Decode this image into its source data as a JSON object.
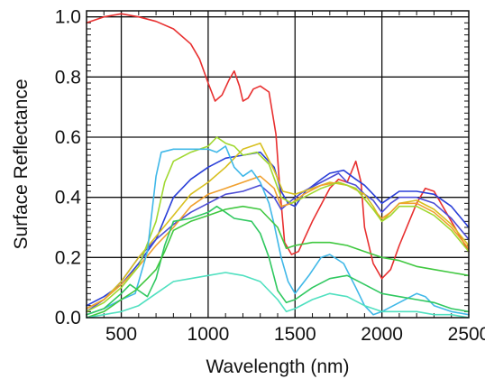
{
  "chart_data": {
    "type": "line",
    "title": "",
    "xlabel": "Wavelength (nm)",
    "ylabel": "Surface Reflectance",
    "xlim": [
      300,
      2500
    ],
    "ylim": [
      0,
      1.02
    ],
    "x_ticks": [
      500,
      1000,
      1500,
      2000,
      2500
    ],
    "y_ticks": [
      0.0,
      0.2,
      0.4,
      0.6,
      0.8,
      1.0
    ],
    "x_tick_labels": [
      "500",
      "1000",
      "1500",
      "2000",
      "2500"
    ],
    "y_tick_labels": [
      "0.0",
      "0.2",
      "0.4",
      "0.6",
      "0.8",
      "1.0"
    ],
    "grid": true,
    "legend": false,
    "series": [
      {
        "color": "#e83030",
        "points": [
          [
            300,
            0.98
          ],
          [
            400,
            1.0
          ],
          [
            500,
            1.01
          ],
          [
            600,
            1.0
          ],
          [
            700,
            0.985
          ],
          [
            800,
            0.96
          ],
          [
            900,
            0.91
          ],
          [
            950,
            0.86
          ],
          [
            1000,
            0.78
          ],
          [
            1040,
            0.72
          ],
          [
            1080,
            0.74
          ],
          [
            1120,
            0.79
          ],
          [
            1150,
            0.82
          ],
          [
            1180,
            0.77
          ],
          [
            1200,
            0.72
          ],
          [
            1230,
            0.73
          ],
          [
            1260,
            0.76
          ],
          [
            1300,
            0.77
          ],
          [
            1350,
            0.75
          ],
          [
            1390,
            0.61
          ],
          [
            1410,
            0.45
          ],
          [
            1440,
            0.25
          ],
          [
            1480,
            0.21
          ],
          [
            1520,
            0.22
          ],
          [
            1600,
            0.32
          ],
          [
            1700,
            0.43
          ],
          [
            1750,
            0.46
          ],
          [
            1800,
            0.45
          ],
          [
            1850,
            0.52
          ],
          [
            1880,
            0.45
          ],
          [
            1900,
            0.3
          ],
          [
            1950,
            0.18
          ],
          [
            2000,
            0.13
          ],
          [
            2050,
            0.16
          ],
          [
            2100,
            0.24
          ],
          [
            2150,
            0.31
          ],
          [
            2200,
            0.38
          ],
          [
            2250,
            0.43
          ],
          [
            2300,
            0.42
          ],
          [
            2400,
            0.32
          ],
          [
            2500,
            0.22
          ]
        ]
      },
      {
        "color": "#2a3fd8",
        "points": [
          [
            300,
            0.04
          ],
          [
            400,
            0.07
          ],
          [
            500,
            0.11
          ],
          [
            600,
            0.18
          ],
          [
            700,
            0.26
          ],
          [
            800,
            0.4
          ],
          [
            900,
            0.46
          ],
          [
            1000,
            0.5
          ],
          [
            1100,
            0.53
          ],
          [
            1200,
            0.54
          ],
          [
            1300,
            0.55
          ],
          [
            1380,
            0.5
          ],
          [
            1420,
            0.42
          ],
          [
            1460,
            0.38
          ],
          [
            1500,
            0.37
          ],
          [
            1560,
            0.42
          ],
          [
            1650,
            0.46
          ],
          [
            1700,
            0.48
          ],
          [
            1780,
            0.49
          ],
          [
            1850,
            0.46
          ],
          [
            1900,
            0.44
          ],
          [
            1950,
            0.41
          ],
          [
            2000,
            0.38
          ],
          [
            2050,
            0.4
          ],
          [
            2100,
            0.42
          ],
          [
            2200,
            0.42
          ],
          [
            2300,
            0.41
          ],
          [
            2400,
            0.37
          ],
          [
            2500,
            0.3
          ]
        ]
      },
      {
        "color": "#4d4dd6",
        "points": [
          [
            300,
            0.02
          ],
          [
            400,
            0.06
          ],
          [
            500,
            0.12
          ],
          [
            600,
            0.2
          ],
          [
            700,
            0.26
          ],
          [
            800,
            0.31
          ],
          [
            900,
            0.35
          ],
          [
            1000,
            0.38
          ],
          [
            1100,
            0.41
          ],
          [
            1200,
            0.42
          ],
          [
            1300,
            0.44
          ],
          [
            1380,
            0.4
          ],
          [
            1420,
            0.36
          ],
          [
            1480,
            0.39
          ],
          [
            1550,
            0.42
          ],
          [
            1650,
            0.45
          ],
          [
            1750,
            0.48
          ],
          [
            1800,
            0.45
          ],
          [
            1850,
            0.44
          ],
          [
            1900,
            0.41
          ],
          [
            1950,
            0.39
          ],
          [
            2000,
            0.35
          ],
          [
            2050,
            0.38
          ],
          [
            2100,
            0.4
          ],
          [
            2200,
            0.4
          ],
          [
            2300,
            0.38
          ],
          [
            2400,
            0.33
          ],
          [
            2500,
            0.26
          ]
        ]
      },
      {
        "color": "#d8c020",
        "points": [
          [
            300,
            0.03
          ],
          [
            400,
            0.06
          ],
          [
            500,
            0.12
          ],
          [
            600,
            0.2
          ],
          [
            700,
            0.27
          ],
          [
            800,
            0.34
          ],
          [
            900,
            0.41
          ],
          [
            1000,
            0.45
          ],
          [
            1100,
            0.5
          ],
          [
            1200,
            0.56
          ],
          [
            1300,
            0.58
          ],
          [
            1380,
            0.49
          ],
          [
            1430,
            0.42
          ],
          [
            1500,
            0.41
          ],
          [
            1600,
            0.43
          ],
          [
            1700,
            0.45
          ],
          [
            1800,
            0.44
          ],
          [
            1900,
            0.41
          ],
          [
            1950,
            0.37
          ],
          [
            2000,
            0.32
          ],
          [
            2050,
            0.35
          ],
          [
            2100,
            0.38
          ],
          [
            2200,
            0.39
          ],
          [
            2300,
            0.36
          ],
          [
            2400,
            0.31
          ],
          [
            2500,
            0.24
          ]
        ]
      },
      {
        "color": "#f0a030",
        "points": [
          [
            300,
            0.03
          ],
          [
            400,
            0.06
          ],
          [
            500,
            0.11
          ],
          [
            600,
            0.17
          ],
          [
            700,
            0.24
          ],
          [
            800,
            0.3
          ],
          [
            900,
            0.37
          ],
          [
            1000,
            0.41
          ],
          [
            1100,
            0.43
          ],
          [
            1200,
            0.45
          ],
          [
            1300,
            0.47
          ],
          [
            1380,
            0.43
          ],
          [
            1420,
            0.37
          ],
          [
            1480,
            0.38
          ],
          [
            1550,
            0.41
          ],
          [
            1650,
            0.44
          ],
          [
            1750,
            0.45
          ],
          [
            1850,
            0.43
          ],
          [
            1950,
            0.36
          ],
          [
            2000,
            0.33
          ],
          [
            2050,
            0.35
          ],
          [
            2100,
            0.38
          ],
          [
            2200,
            0.38
          ],
          [
            2300,
            0.35
          ],
          [
            2400,
            0.3
          ],
          [
            2500,
            0.23
          ]
        ]
      },
      {
        "color": "#a0d830",
        "points": [
          [
            300,
            0.02
          ],
          [
            400,
            0.05
          ],
          [
            500,
            0.1
          ],
          [
            600,
            0.17
          ],
          [
            700,
            0.32
          ],
          [
            750,
            0.45
          ],
          [
            800,
            0.52
          ],
          [
            900,
            0.55
          ],
          [
            1000,
            0.57
          ],
          [
            1050,
            0.6
          ],
          [
            1100,
            0.58
          ],
          [
            1150,
            0.57
          ],
          [
            1200,
            0.54
          ],
          [
            1280,
            0.55
          ],
          [
            1350,
            0.51
          ],
          [
            1420,
            0.4
          ],
          [
            1480,
            0.38
          ],
          [
            1550,
            0.4
          ],
          [
            1650,
            0.43
          ],
          [
            1750,
            0.45
          ],
          [
            1850,
            0.43
          ],
          [
            1950,
            0.36
          ],
          [
            2000,
            0.32
          ],
          [
            2050,
            0.34
          ],
          [
            2100,
            0.37
          ],
          [
            2200,
            0.37
          ],
          [
            2300,
            0.34
          ],
          [
            2400,
            0.29
          ],
          [
            2500,
            0.22
          ]
        ]
      },
      {
        "color": "#40b8e8",
        "points": [
          [
            300,
            0.01
          ],
          [
            400,
            0.03
          ],
          [
            500,
            0.06
          ],
          [
            580,
            0.08
          ],
          [
            650,
            0.22
          ],
          [
            700,
            0.47
          ],
          [
            730,
            0.55
          ],
          [
            800,
            0.56
          ],
          [
            900,
            0.56
          ],
          [
            1000,
            0.56
          ],
          [
            1050,
            0.55
          ],
          [
            1100,
            0.57
          ],
          [
            1150,
            0.5
          ],
          [
            1200,
            0.47
          ],
          [
            1250,
            0.49
          ],
          [
            1300,
            0.45
          ],
          [
            1350,
            0.38
          ],
          [
            1380,
            0.31
          ],
          [
            1420,
            0.2
          ],
          [
            1460,
            0.12
          ],
          [
            1500,
            0.08
          ],
          [
            1580,
            0.14
          ],
          [
            1650,
            0.2
          ],
          [
            1700,
            0.21
          ],
          [
            1780,
            0.18
          ],
          [
            1850,
            0.1
          ],
          [
            1900,
            0.04
          ],
          [
            1950,
            0.01
          ],
          [
            2000,
            0.02
          ],
          [
            2100,
            0.05
          ],
          [
            2200,
            0.08
          ],
          [
            2250,
            0.07
          ],
          [
            2300,
            0.04
          ],
          [
            2400,
            0.02
          ],
          [
            2500,
            0.01
          ]
        ]
      },
      {
        "color": "#30c860",
        "points": [
          [
            300,
            0.01
          ],
          [
            400,
            0.03
          ],
          [
            500,
            0.08
          ],
          [
            550,
            0.11
          ],
          [
            600,
            0.09
          ],
          [
            650,
            0.07
          ],
          [
            700,
            0.13
          ],
          [
            750,
            0.24
          ],
          [
            800,
            0.32
          ],
          [
            900,
            0.33
          ],
          [
            1000,
            0.35
          ],
          [
            1050,
            0.37
          ],
          [
            1100,
            0.35
          ],
          [
            1150,
            0.33
          ],
          [
            1250,
            0.32
          ],
          [
            1300,
            0.28
          ],
          [
            1350,
            0.2
          ],
          [
            1400,
            0.09
          ],
          [
            1450,
            0.05
          ],
          [
            1500,
            0.06
          ],
          [
            1600,
            0.1
          ],
          [
            1700,
            0.13
          ],
          [
            1800,
            0.14
          ],
          [
            1900,
            0.11
          ],
          [
            2000,
            0.08
          ],
          [
            2100,
            0.07
          ],
          [
            2200,
            0.06
          ],
          [
            2300,
            0.05
          ],
          [
            2400,
            0.03
          ],
          [
            2500,
            0.02
          ]
        ]
      },
      {
        "color": "#40c840",
        "points": [
          [
            300,
            0.0
          ],
          [
            400,
            0.02
          ],
          [
            500,
            0.06
          ],
          [
            580,
            0.09
          ],
          [
            650,
            0.13
          ],
          [
            700,
            0.16
          ],
          [
            750,
            0.22
          ],
          [
            800,
            0.29
          ],
          [
            900,
            0.32
          ],
          [
            1000,
            0.34
          ],
          [
            1100,
            0.36
          ],
          [
            1200,
            0.37
          ],
          [
            1300,
            0.36
          ],
          [
            1400,
            0.3
          ],
          [
            1450,
            0.23
          ],
          [
            1500,
            0.24
          ],
          [
            1600,
            0.25
          ],
          [
            1700,
            0.25
          ],
          [
            1800,
            0.24
          ],
          [
            1900,
            0.22
          ],
          [
            2000,
            0.2
          ],
          [
            2100,
            0.19
          ],
          [
            2200,
            0.17
          ],
          [
            2300,
            0.16
          ],
          [
            2400,
            0.15
          ],
          [
            2500,
            0.14
          ]
        ]
      },
      {
        "color": "#50e0c0",
        "points": [
          [
            300,
            0.0
          ],
          [
            400,
            0.01
          ],
          [
            500,
            0.02
          ],
          [
            600,
            0.04
          ],
          [
            700,
            0.08
          ],
          [
            800,
            0.12
          ],
          [
            900,
            0.13
          ],
          [
            1000,
            0.14
          ],
          [
            1100,
            0.15
          ],
          [
            1200,
            0.14
          ],
          [
            1300,
            0.12
          ],
          [
            1400,
            0.06
          ],
          [
            1450,
            0.02
          ],
          [
            1500,
            0.03
          ],
          [
            1600,
            0.06
          ],
          [
            1700,
            0.08
          ],
          [
            1800,
            0.07
          ],
          [
            1900,
            0.04
          ],
          [
            2000,
            0.02
          ],
          [
            2100,
            0.02
          ],
          [
            2200,
            0.02
          ],
          [
            2300,
            0.01
          ],
          [
            2400,
            0.01
          ],
          [
            2500,
            0.0
          ]
        ]
      }
    ]
  }
}
